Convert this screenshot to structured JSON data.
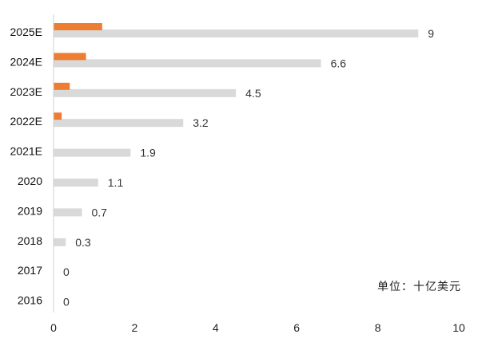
{
  "chart_data": {
    "type": "bar",
    "orientation": "horizontal",
    "categories": [
      "2025E",
      "2024E",
      "2023E",
      "2022E",
      "2021E",
      "2020",
      "2019",
      "2018",
      "2017",
      "2016"
    ],
    "series": [
      {
        "values": [
          9,
          6.6,
          4.5,
          3.2,
          1.9,
          1.1,
          0.7,
          0.3,
          0,
          0
        ],
        "color": "#d9d9d9",
        "labels": [
          "9",
          "6.6",
          "4.5",
          "3.2",
          "1.9",
          "1.1",
          "0.7",
          "0.3",
          "0",
          "0"
        ]
      },
      {
        "values": [
          1.2,
          0.8,
          0.4,
          0.2,
          0,
          0,
          0,
          0,
          0,
          0
        ],
        "color": "#ed7d31"
      }
    ],
    "xlim": [
      0,
      10
    ],
    "xticks": [
      0,
      2,
      4,
      6,
      8,
      10
    ],
    "grid": false,
    "unit_note": "单位：十亿美元"
  }
}
